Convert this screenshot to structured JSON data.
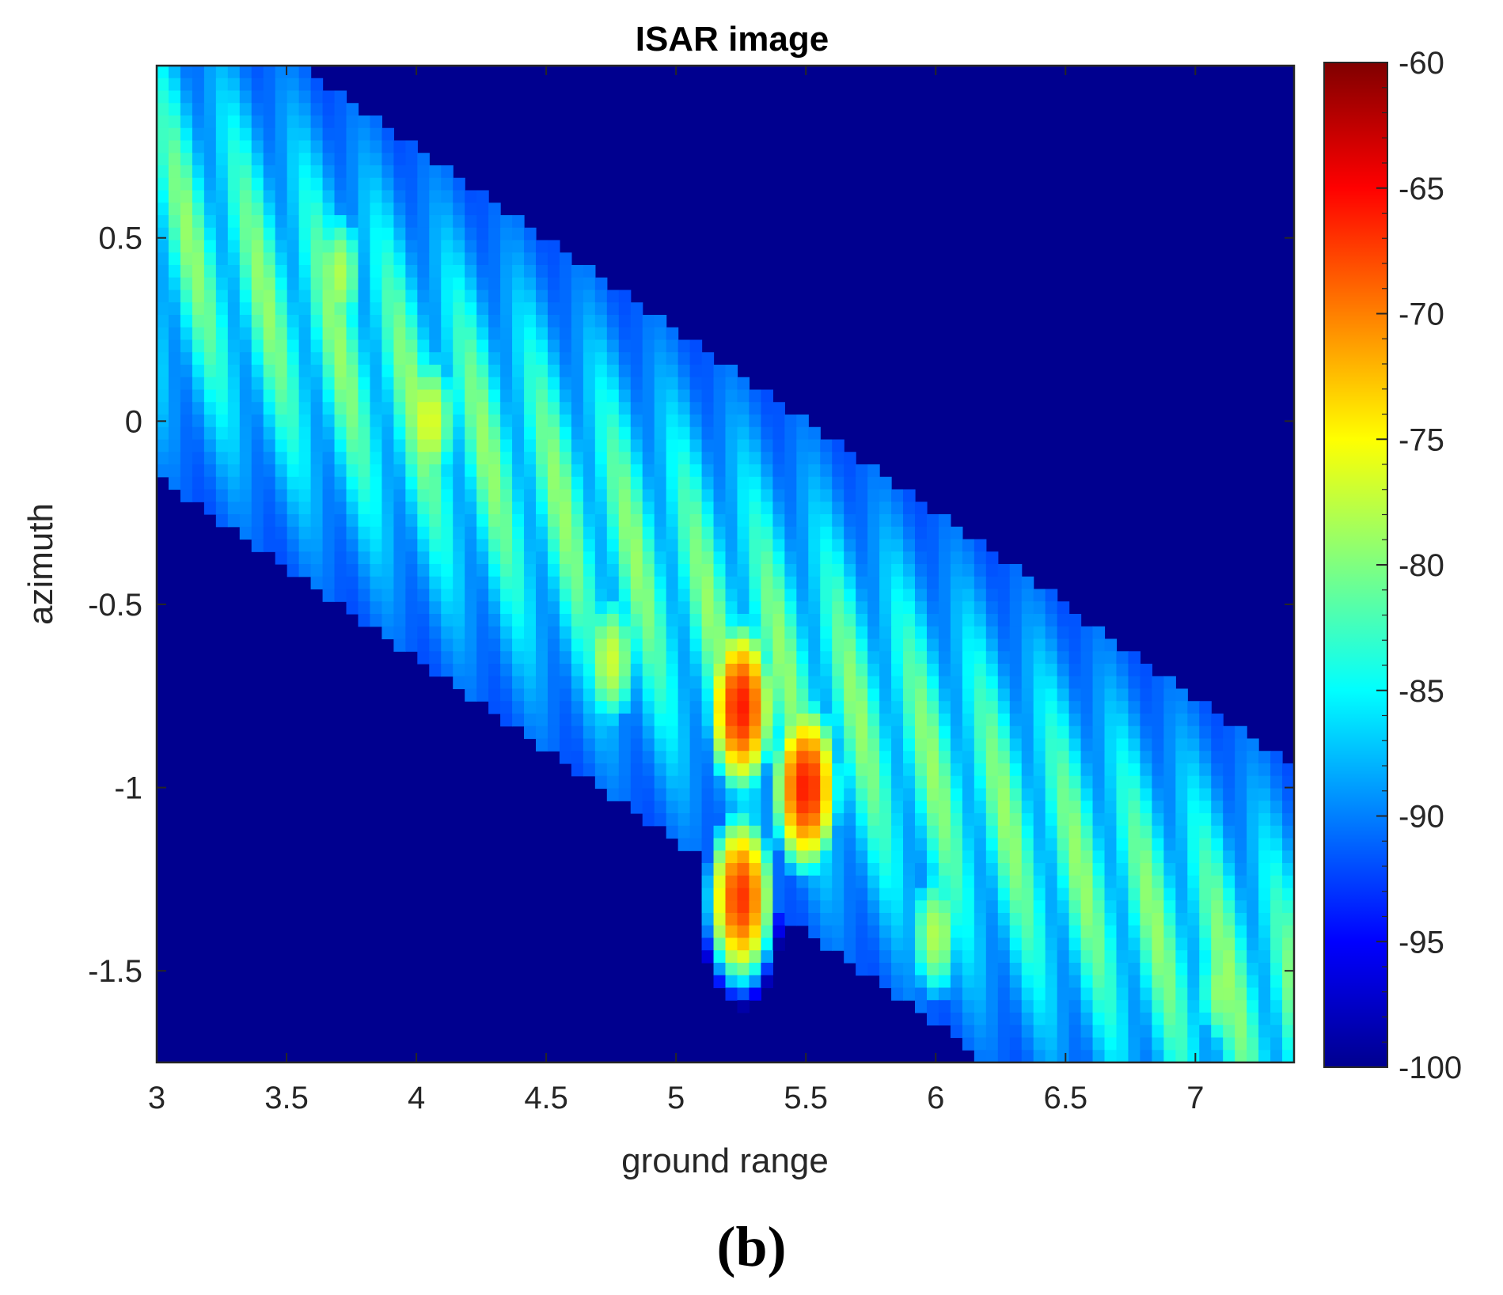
{
  "chart_data": {
    "type": "heatmap",
    "title": "ISAR image",
    "xlabel": "ground range",
    "ylabel": "azimuth",
    "xlim": [
      3,
      7.38
    ],
    "ylim": [
      -1.75,
      0.97
    ],
    "xticks": [
      3,
      3.5,
      4,
      4.5,
      5,
      5.5,
      6,
      6.5,
      7
    ],
    "xtick_labels": [
      "3",
      "3.5",
      "4",
      "4.5",
      "5",
      "5.5",
      "6",
      "6.5",
      "7"
    ],
    "yticks": [
      0.5,
      0,
      -0.5,
      -1,
      -1.5
    ],
    "ytick_labels": [
      "0.5",
      "0",
      "-0.5",
      "-1",
      "-1.5"
    ],
    "colorbar": {
      "range": [
        -100,
        -60
      ],
      "ticks": [
        -60,
        -65,
        -70,
        -75,
        -80,
        -85,
        -90,
        -95,
        -100
      ],
      "tick_labels": [
        "-60",
        "-65",
        "-70",
        "-75",
        "-80",
        "-85",
        "-90",
        "-95",
        "-100"
      ],
      "colormap": "jet"
    },
    "background_level": -100,
    "hotspots": [
      {
        "x": 5.25,
        "y": -0.78,
        "peak": -66
      },
      {
        "x": 5.5,
        "y": -1.0,
        "peak": -66
      },
      {
        "x": 5.25,
        "y": -1.3,
        "peak": -67
      },
      {
        "x": 4.05,
        "y": 0.0,
        "peak": -76
      },
      {
        "x": 4.75,
        "y": -0.65,
        "peak": -77
      },
      {
        "x": 6.0,
        "y": -1.4,
        "peak": -78
      },
      {
        "x": 3.7,
        "y": 0.4,
        "peak": -78
      },
      {
        "x": 7.1,
        "y": -1.55,
        "peak": -79
      }
    ]
  },
  "caption": "(b)"
}
